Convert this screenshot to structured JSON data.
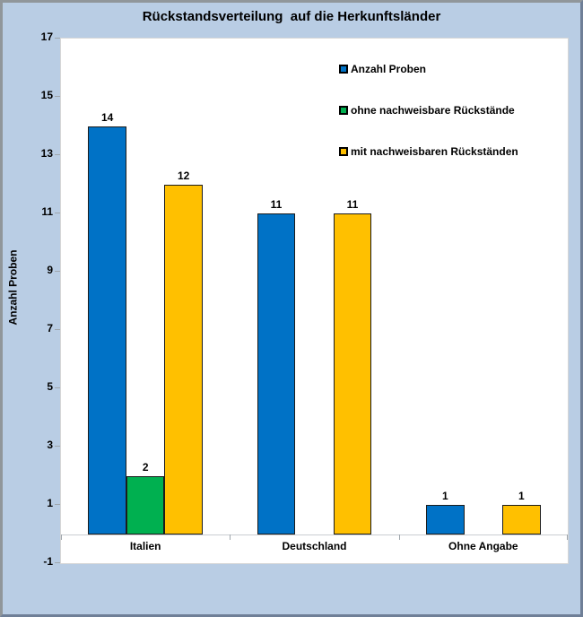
{
  "window": {
    "background_color": "#B9CDE4",
    "frame_border_light": "#90969A",
    "frame_border_dark": "#6F7F97",
    "plot_background": "#FFFFFF"
  },
  "chart_data": {
    "type": "bar",
    "title": "Rückstandsverteilung  auf die Herkunftsländer",
    "ylabel": "Anzahl Proben",
    "xlabel": "",
    "categories": [
      "Italien",
      "Deutschland",
      "Ohne Angabe"
    ],
    "series": [
      {
        "name": "Anzahl Proben",
        "color": "#0072C6",
        "values": [
          14,
          11,
          1
        ]
      },
      {
        "name": "ohne nachweisbare Rückstände",
        "color": "#00B050",
        "values": [
          2,
          0,
          0
        ]
      },
      {
        "name": "mit nachweisbaren Rückständen",
        "color": "#FFC000",
        "values": [
          12,
          11,
          1
        ]
      }
    ],
    "ylim": [
      -1,
      17
    ],
    "yticks": [
      17,
      15,
      13,
      11,
      9,
      7,
      5,
      3,
      1,
      -1
    ],
    "grid": false,
    "bar_labels": true,
    "zero_values_not_drawn": true,
    "legend_position": "top-right-inside"
  }
}
